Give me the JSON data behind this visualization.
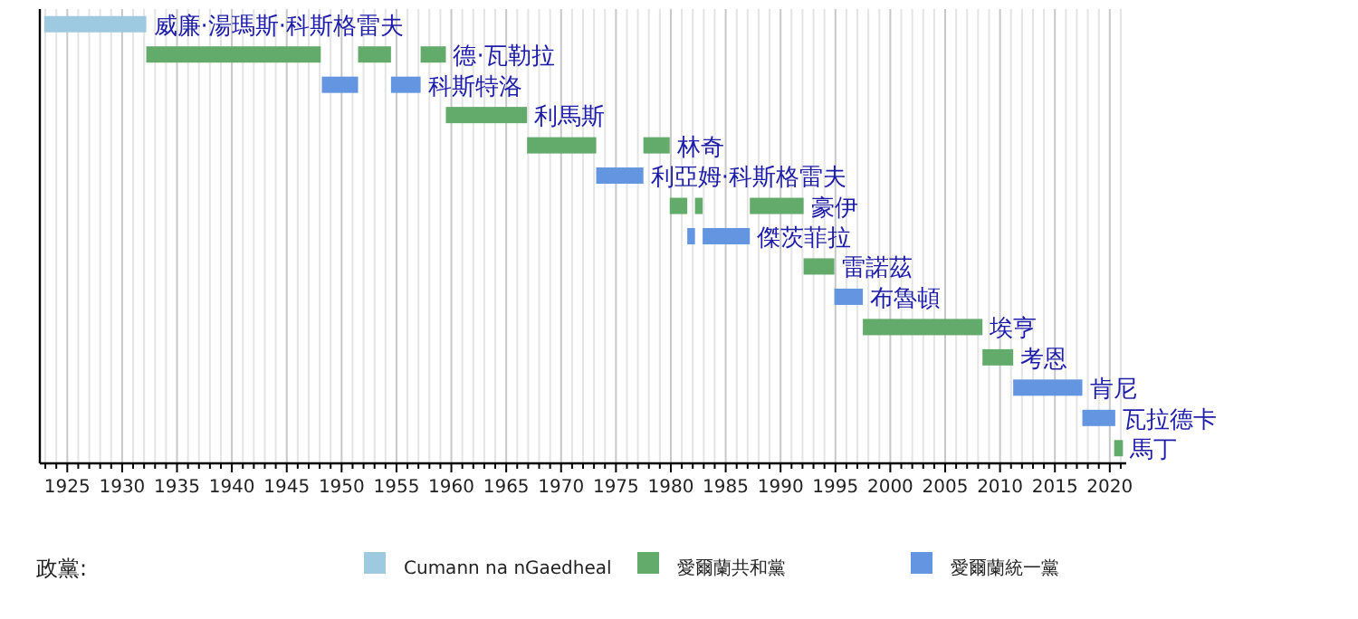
{
  "chart_data": {
    "type": "bar",
    "orientation": "horizontal",
    "categories": [
      "威廉·湯瑪斯·科斯格雷夫",
      "德·瓦勒拉",
      "科斯特洛",
      "利馬斯",
      "林奇",
      "利亞姆·科斯格雷夫",
      "豪伊",
      "傑茨菲拉",
      "雷諾茲",
      "布魯頓",
      "埃亨",
      "考恩",
      "肯尼",
      "瓦拉德卡",
      "馬丁"
    ],
    "series": [
      {
        "name": "Cumann na nGaedheal",
        "color": "#9ecae1",
        "base": [
          1922.9,
          null,
          null,
          null,
          null,
          null,
          null,
          null,
          null,
          null,
          null,
          null,
          null,
          null,
          null
        ],
        "values": [
          9.3,
          null,
          null,
          null,
          null,
          null,
          null,
          null,
          null,
          null,
          null,
          null,
          null,
          null,
          null
        ]
      },
      {
        "name": "愛爾蘭共和黨",
        "color": "#63ab6a",
        "base": [
          null,
          1932.2,
          null,
          1959.5,
          1966.9,
          null,
          1979.9,
          null,
          1992.1,
          null,
          1997.5,
          2008.4,
          null,
          null,
          2020.4
        ],
        "values": [
          null,
          15.9,
          null,
          7.4,
          6.3,
          null,
          1.6,
          null,
          2.8,
          null,
          10.9,
          2.8,
          null,
          null,
          0.8
        ]
      },
      {
        "color": "#63ab6a",
        "base": [
          null,
          1951.5,
          null,
          null,
          1977.5,
          null,
          1982.2,
          null,
          null,
          null,
          null,
          null,
          null,
          null,
          null
        ],
        "values": [
          null,
          3.0,
          null,
          null,
          2.4,
          null,
          0.7,
          null,
          null,
          null,
          null,
          null,
          null,
          null,
          null
        ]
      },
      {
        "color": "#63ab6a",
        "base": [
          null,
          1957.2,
          null,
          null,
          null,
          null,
          1987.2,
          null,
          null,
          null,
          null,
          null,
          null,
          null,
          null
        ],
        "values": [
          null,
          2.3,
          null,
          null,
          null,
          null,
          4.9,
          null,
          null,
          null,
          null,
          null,
          null,
          null,
          null
        ]
      },
      {
        "name": "愛爾蘭統一黨",
        "color": "#6495e0",
        "base": [
          null,
          null,
          1948.2,
          null,
          null,
          1973.2,
          null,
          1981.5,
          null,
          1994.9,
          null,
          null,
          2011.2,
          2017.5,
          null
        ],
        "values": [
          null,
          null,
          3.3,
          null,
          null,
          4.3,
          null,
          0.7,
          null,
          2.6,
          null,
          null,
          6.3,
          3.0,
          null
        ]
      },
      {
        "color": "#6495e0",
        "base": [
          null,
          null,
          1954.5,
          null,
          null,
          null,
          null,
          1982.9,
          null,
          null,
          null,
          null,
          null,
          null,
          null
        ],
        "values": [
          null,
          null,
          2.7,
          null,
          null,
          null,
          null,
          4.3,
          null,
          null,
          null,
          null,
          null,
          null,
          null
        ]
      }
    ],
    "xlim": [
      1922.5,
      2021.5
    ],
    "xticks": [
      {
        "value": 1923,
        "label": null
      },
      {
        "value": 1924,
        "label": null
      },
      1925,
      {
        "value": 1926,
        "label": null
      },
      {
        "value": 1927,
        "label": null
      },
      {
        "value": 1928,
        "label": null
      },
      {
        "value": 1929,
        "label": null
      },
      1930,
      {
        "value": 1931,
        "label": null
      },
      {
        "value": 1932,
        "label": null
      },
      {
        "value": 1933,
        "label": null
      },
      {
        "value": 1934,
        "label": null
      },
      1935,
      {
        "value": 1936,
        "label": null
      },
      {
        "value": 1937,
        "label": null
      },
      {
        "value": 1938,
        "label": null
      },
      {
        "value": 1939,
        "label": null
      },
      1940,
      {
        "value": 1941,
        "label": null
      },
      {
        "value": 1942,
        "label": null
      },
      {
        "value": 1943,
        "label": null
      },
      {
        "value": 1944,
        "label": null
      },
      1945,
      {
        "value": 1946,
        "label": null
      },
      {
        "value": 1947,
        "label": null
      },
      {
        "value": 1948,
        "label": null
      },
      {
        "value": 1949,
        "label": null
      },
      1950,
      {
        "value": 1951,
        "label": null
      },
      {
        "value": 1952,
        "label": null
      },
      {
        "value": 1953,
        "label": null
      },
      {
        "value": 1954,
        "label": null
      },
      1955,
      {
        "value": 1956,
        "label": null
      },
      {
        "value": 1957,
        "label": null
      },
      {
        "value": 1958,
        "label": null
      },
      {
        "value": 1959,
        "label": null
      },
      1960,
      {
        "value": 1961,
        "label": null
      },
      {
        "value": 1962,
        "label": null
      },
      {
        "value": 1963,
        "label": null
      },
      {
        "value": 1964,
        "label": null
      },
      1965,
      {
        "value": 1966,
        "label": null
      },
      {
        "value": 1967,
        "label": null
      },
      {
        "value": 1968,
        "label": null
      },
      {
        "value": 1969,
        "label": null
      },
      1970,
      {
        "value": 1971,
        "label": null
      },
      {
        "value": 1972,
        "label": null
      },
      {
        "value": 1973,
        "label": null
      },
      {
        "value": 1974,
        "label": null
      },
      1975,
      {
        "value": 1976,
        "label": null
      },
      {
        "value": 1977,
        "label": null
      },
      {
        "value": 1978,
        "label": null
      },
      {
        "value": 1979,
        "label": null
      },
      1980,
      {
        "value": 1981,
        "label": null
      },
      {
        "value": 1982,
        "label": null
      },
      {
        "value": 1983,
        "label": null
      },
      {
        "value": 1984,
        "label": null
      },
      1985,
      {
        "value": 1986,
        "label": null
      },
      {
        "value": 1987,
        "label": null
      },
      {
        "value": 1988,
        "label": null
      },
      {
        "value": 1989,
        "label": null
      },
      1990,
      {
        "value": 1991,
        "label": null
      },
      {
        "value": 1992,
        "label": null
      },
      {
        "value": 1993,
        "label": null
      },
      {
        "value": 1994,
        "label": null
      },
      1995,
      {
        "value": 1996,
        "label": null
      },
      {
        "value": 1997,
        "label": null
      },
      {
        "value": 1998,
        "label": null
      },
      {
        "value": 1999,
        "label": null
      },
      2000,
      {
        "value": 2001,
        "label": null
      },
      {
        "value": 2002,
        "label": null
      },
      {
        "value": 2003,
        "label": null
      },
      {
        "value": 2004,
        "label": null
      },
      2005,
      {
        "value": 2006,
        "label": null
      },
      {
        "value": 2007,
        "label": null
      },
      {
        "value": 2008,
        "label": null
      },
      {
        "value": 2009,
        "label": null
      },
      2010,
      {
        "value": 2011,
        "label": null
      },
      {
        "value": 2012,
        "label": null
      },
      {
        "value": 2013,
        "label": null
      },
      {
        "value": 2014,
        "label": null
      },
      2015,
      {
        "value": 2016,
        "label": null
      },
      {
        "value": 2017,
        "label": null
      },
      {
        "value": 2018,
        "label": null
      },
      {
        "value": 2019,
        "label": null
      },
      2020,
      {
        "value": 2021,
        "label": null
      }
    ],
    "grid": "x",
    "legend": "bottom",
    "legend_title": "政黨:"
  }
}
